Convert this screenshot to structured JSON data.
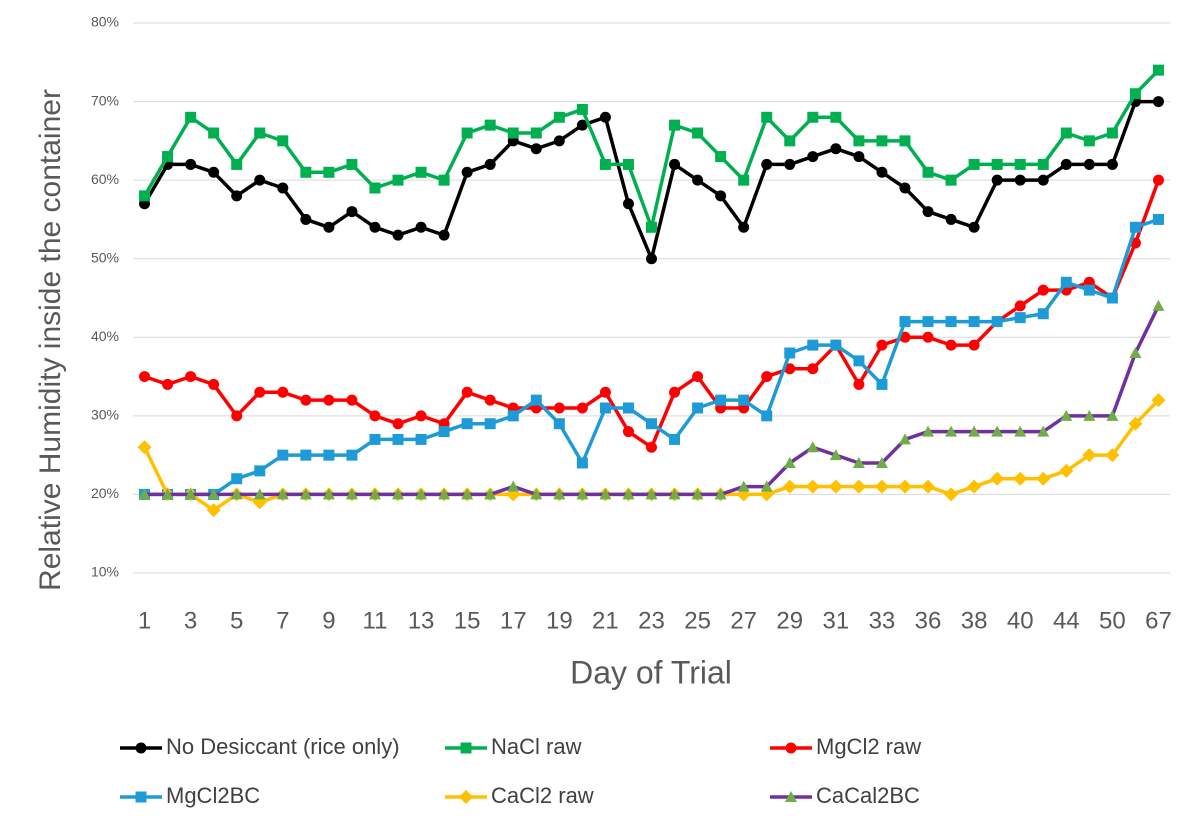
{
  "chart_data": {
    "type": "line",
    "y_label": "Relative Humidity inside the container",
    "x_label": "Day of Trial",
    "categories": [
      "1",
      null,
      "3",
      null,
      "5",
      null,
      "7",
      null,
      "9",
      null,
      "11",
      null,
      "13",
      null,
      "15",
      null,
      "17",
      null,
      "19",
      null,
      "21",
      null,
      "23",
      null,
      "25",
      null,
      "27",
      null,
      "29",
      null,
      "31",
      null,
      "33",
      null,
      "36",
      null,
      "38",
      null,
      "40",
      null,
      "44",
      null,
      "50",
      null,
      "67"
    ],
    "ylim": [
      10,
      80
    ],
    "yticks": [
      {
        "value": 10,
        "label": "10%"
      },
      {
        "value": 20,
        "label": "20%"
      },
      {
        "value": 30,
        "label": "30%"
      },
      {
        "value": 40,
        "label": "40%"
      },
      {
        "value": 50,
        "label": "50%"
      },
      {
        "value": 60,
        "label": "60%"
      },
      {
        "value": 70,
        "label": "70%"
      },
      {
        "value": 80,
        "label": "80%"
      }
    ],
    "grid": true,
    "legend": "bottom",
    "series": [
      {
        "name": "No Desiccant (rice only)",
        "color": "#000000",
        "marker": "circle",
        "marker_color": "#000000",
        "values": [
          57,
          62,
          62,
          61,
          58,
          60,
          59,
          55,
          54,
          56,
          54,
          53,
          54,
          53,
          61,
          62,
          65,
          64,
          65,
          67,
          68,
          57,
          50,
          62,
          60,
          58,
          54,
          62,
          62,
          63,
          64,
          63,
          61,
          59,
          56,
          55,
          54,
          60,
          60,
          60,
          62,
          62,
          62,
          70,
          70
        ]
      },
      {
        "name": "NaCl raw",
        "color": "#00b050",
        "marker": "square",
        "marker_color": "#00b050",
        "values": [
          58,
          63,
          68,
          66,
          62,
          66,
          65,
          61,
          61,
          62,
          59,
          60,
          61,
          60,
          66,
          67,
          66,
          66,
          68,
          69,
          62,
          62,
          54,
          67,
          66,
          63,
          60,
          68,
          65,
          68,
          68,
          65,
          65,
          65,
          61,
          60,
          62,
          62,
          62,
          62,
          66,
          65,
          66,
          71,
          74
        ]
      },
      {
        "name": "MgCl2 raw",
        "color": "#ff0000",
        "marker": "circle",
        "marker_color": "#ff0000",
        "values": [
          35,
          34,
          35,
          34,
          30,
          33,
          33,
          32,
          32,
          32,
          30,
          29,
          30,
          29,
          33,
          32,
          31,
          31,
          31,
          31,
          33,
          28,
          26,
          33,
          35,
          31,
          31,
          35,
          36,
          36,
          39,
          34,
          39,
          40,
          40,
          39,
          39,
          42,
          44,
          46,
          46,
          47,
          45,
          52,
          60
        ]
      },
      {
        "name": "MgCl2BC",
        "color": "#1e9bd7",
        "marker": "square",
        "marker_color": "#1e9bd7",
        "values": [
          20,
          20,
          20,
          20,
          22,
          23,
          25,
          25,
          25,
          25,
          27,
          27,
          27,
          28,
          29,
          29,
          30,
          32,
          29,
          24,
          31,
          31,
          29,
          27,
          31,
          32,
          32,
          30,
          38,
          39,
          39,
          37,
          34,
          42,
          42,
          42,
          42,
          42,
          42.5,
          43,
          47,
          46,
          45,
          54,
          55
        ]
      },
      {
        "name": "CaCl2 raw",
        "color": "#ffc000",
        "marker": "diamond",
        "marker_color": "#ffc000",
        "values": [
          26,
          20,
          20,
          18,
          20,
          19,
          20,
          20,
          20,
          20,
          20,
          20,
          20,
          20,
          20,
          20,
          20,
          20,
          20,
          20,
          20,
          20,
          20,
          20,
          20,
          20,
          20,
          20,
          21,
          21,
          21,
          21,
          21,
          21,
          21,
          20,
          21,
          22,
          22,
          22,
          23,
          25,
          25,
          29,
          32
        ]
      },
      {
        "name": "CaCal2BC",
        "color": "#7030a0",
        "marker": "triangle",
        "marker_color": "#70ad47",
        "values": [
          20,
          20,
          20,
          20,
          20,
          20,
          20,
          20,
          20,
          20,
          20,
          20,
          20,
          20,
          20,
          20,
          21,
          20,
          20,
          20,
          20,
          20,
          20,
          20,
          20,
          20,
          21,
          21,
          24,
          26,
          25,
          24,
          24,
          27,
          28,
          28,
          28,
          28,
          28,
          28,
          30,
          30,
          30,
          38,
          44
        ]
      }
    ]
  }
}
